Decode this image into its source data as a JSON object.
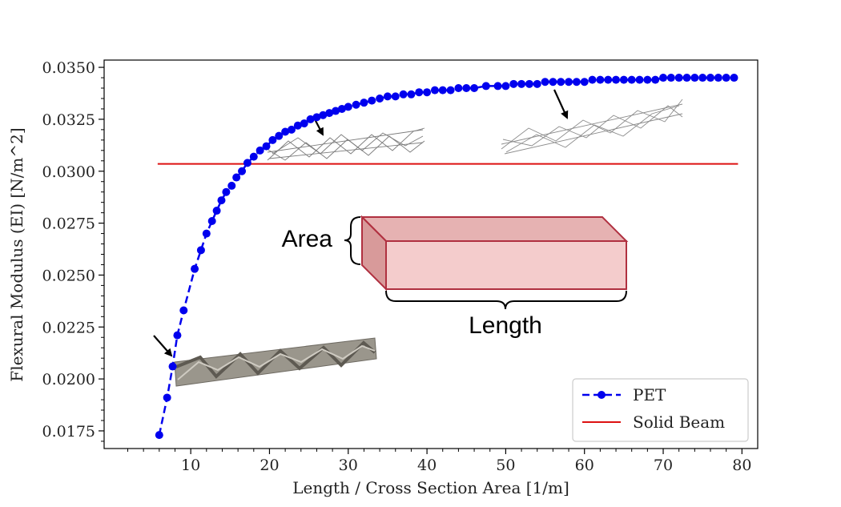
{
  "chart_data": {
    "type": "line",
    "xlabel": "Length / Cross Section Area [1/m]",
    "ylabel": "Flexural Modulus (EI) [N/m^2]",
    "xlim": [
      -1,
      82
    ],
    "ylim": [
      0.01665,
      0.03535
    ],
    "x_ticks": [
      10,
      20,
      30,
      40,
      50,
      60,
      70,
      80
    ],
    "y_ticks": [
      0.0175,
      0.02,
      0.0225,
      0.025,
      0.0275,
      0.03,
      0.0325,
      0.035
    ],
    "x_tick_labels": [
      "10",
      "20",
      "30",
      "40",
      "50",
      "60",
      "70",
      "80"
    ],
    "y_tick_labels": [
      "0.0175",
      "0.0200",
      "0.0225",
      "0.0250",
      "0.0275",
      "0.0300",
      "0.0325",
      "0.0350"
    ],
    "grid": false,
    "legend_position": "bottom-right",
    "series": [
      {
        "name": "PET",
        "style": "dashed line with circle markers",
        "color": "#0000ee",
        "x": [
          6.0,
          7.0,
          7.7,
          8.3,
          9.1,
          10.5,
          11.3,
          12.0,
          12.7,
          13.3,
          13.9,
          14.5,
          15.2,
          15.8,
          16.5,
          17.2,
          18.0,
          18.8,
          19.6,
          20.4,
          21.2,
          22.0,
          22.8,
          23.6,
          24.4,
          25.2,
          26.0,
          26.8,
          27.6,
          28.4,
          29.2,
          30.0,
          31.0,
          32.0,
          33.0,
          34.0,
          35.0,
          36.0,
          37.0,
          38.0,
          39.0,
          40.0,
          41.0,
          42.0,
          43.0,
          44.0,
          45.0,
          46.0,
          47.5,
          49.0,
          50.0,
          51.0,
          52.0,
          53.0,
          54.0,
          55.0,
          56.0,
          57.0,
          58.0,
          59.0,
          60.0,
          61.0,
          62.0,
          63.0,
          64.0,
          65.0,
          66.0,
          67.0,
          68.0,
          69.0,
          70.0,
          71.0,
          72.0,
          73.0,
          74.0,
          75.0,
          76.0,
          77.0,
          78.0,
          79.0
        ],
        "values": [
          0.0173,
          0.0191,
          0.0206,
          0.0221,
          0.0233,
          0.0253,
          0.0262,
          0.027,
          0.0276,
          0.0281,
          0.0286,
          0.029,
          0.0293,
          0.0297,
          0.03,
          0.0304,
          0.0307,
          0.031,
          0.0312,
          0.0315,
          0.0317,
          0.0319,
          0.032,
          0.0322,
          0.0323,
          0.0325,
          0.0326,
          0.0327,
          0.0328,
          0.0329,
          0.033,
          0.0331,
          0.0332,
          0.0333,
          0.0334,
          0.0335,
          0.0336,
          0.0336,
          0.0337,
          0.0337,
          0.0338,
          0.0338,
          0.0339,
          0.0339,
          0.0339,
          0.034,
          0.034,
          0.034,
          0.0341,
          0.0341,
          0.0341,
          0.0342,
          0.0342,
          0.0342,
          0.0342,
          0.0343,
          0.0343,
          0.0343,
          0.0343,
          0.0343,
          0.0343,
          0.0344,
          0.0344,
          0.0344,
          0.0344,
          0.0344,
          0.0344,
          0.0344,
          0.0344,
          0.0344,
          0.0345,
          0.0345,
          0.0345,
          0.0345,
          0.0345,
          0.0345,
          0.0345,
          0.0345,
          0.0345,
          0.0345
        ]
      },
      {
        "name": "Solid Beam",
        "style": "solid line",
        "color": "#dd1111",
        "x": [
          5.8,
          79.5
        ],
        "values": [
          0.03035,
          0.03035
        ]
      }
    ],
    "annotations": {
      "area_label": "Area",
      "length_label": "Length"
    }
  }
}
